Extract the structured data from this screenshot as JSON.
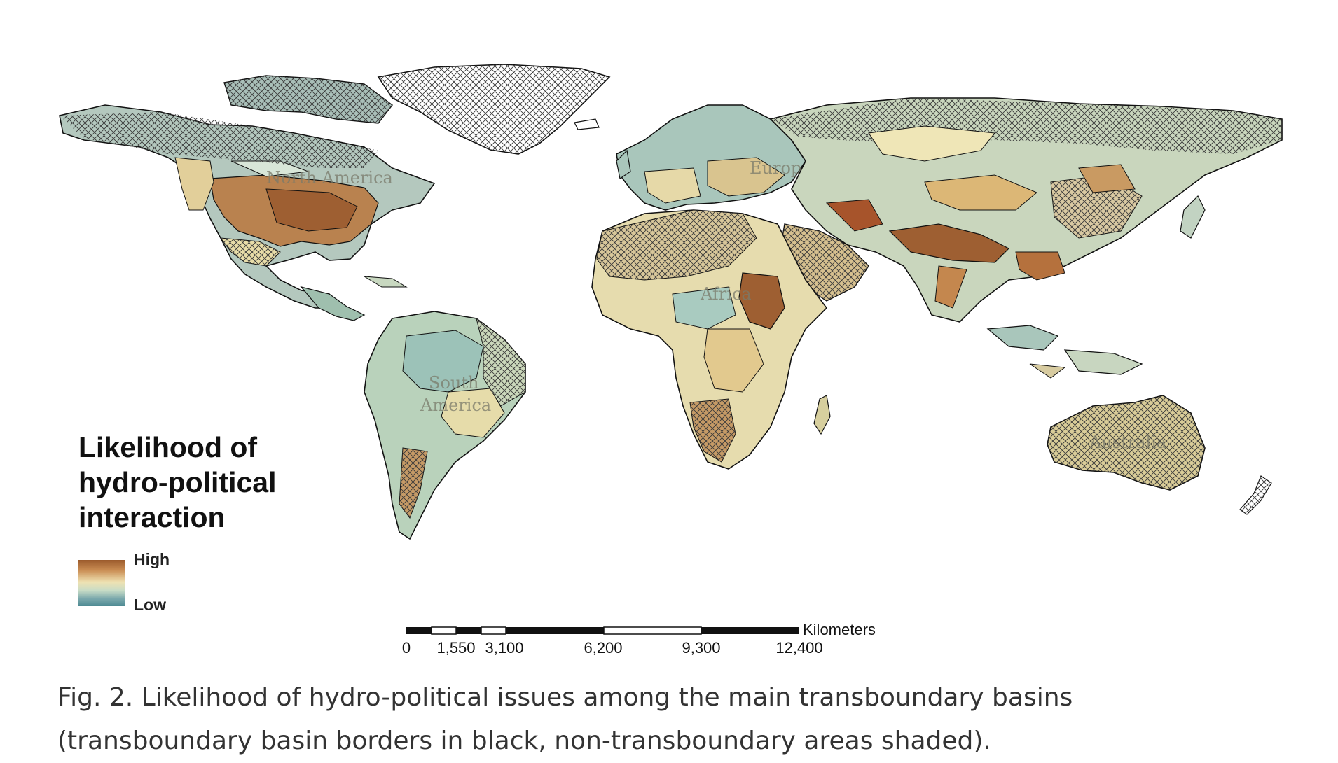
{
  "figure": {
    "legend": {
      "title_lines": [
        "Likelihood of",
        "hydro-political",
        "interaction"
      ],
      "high_label": "High",
      "low_label": "Low",
      "colors": {
        "high": "#9b5a2c",
        "mid": "#efe2b2",
        "low": "#4f8a93"
      }
    },
    "scale_bar": {
      "unit": "Kilometers",
      "ticks": [
        "0",
        "1,550",
        "3,100",
        "6,200",
        "9,300",
        "12,400"
      ]
    },
    "region_labels": {
      "north_america": "North America",
      "south_america_1": "South",
      "south_america_2": "America",
      "africa": "Africa",
      "europe": "Europe",
      "australia": "Australia"
    },
    "shading_note": "hatched = non-transboundary areas"
  },
  "caption": {
    "line1": "Fig. 2. Likelihood of hydro-political issues among the main transboundary basins",
    "line2": "(transboundary basin borders in black, non-transboundary areas shaded)."
  }
}
